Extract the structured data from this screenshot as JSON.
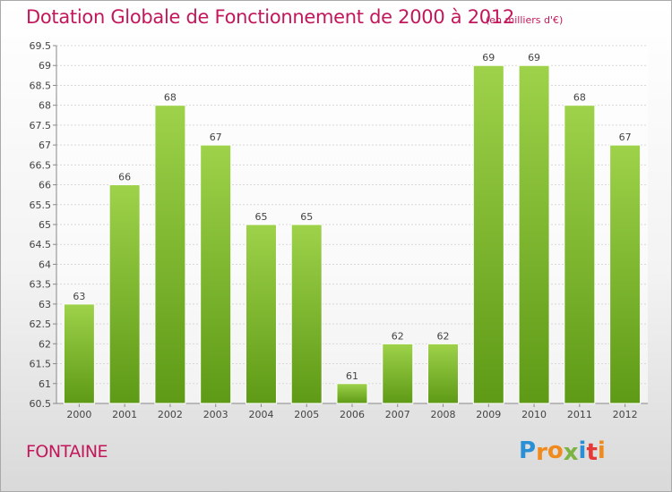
{
  "title": "Dotation Globale de Fonctionnement de 2000 à 2012",
  "subtitle": "(en milliers d'€)",
  "commune": "FONTAINE",
  "brand": {
    "letters": [
      "P",
      "r",
      "o",
      "x",
      "i",
      "t",
      "i"
    ],
    "colors": [
      "#2b8fd6",
      "#f08a1c",
      "#f08a1c",
      "#7cb342",
      "#2b8fd6",
      "#e53935",
      "#f08a1c"
    ]
  },
  "colors": {
    "bar_top": "#9ed24a",
    "bar_bottom": "#5e9a16",
    "title": "#c2185b"
  },
  "chart_data": {
    "type": "bar",
    "title": "Dotation Globale de Fonctionnement de 2000 à 2012",
    "subtitle": "(en milliers d'€)",
    "categories": [
      "2000",
      "2001",
      "2002",
      "2003",
      "2004",
      "2005",
      "2006",
      "2007",
      "2008",
      "2009",
      "2010",
      "2011",
      "2012"
    ],
    "values": [
      63,
      66,
      68,
      67,
      65,
      65,
      61,
      62,
      62,
      69,
      69,
      68,
      67
    ],
    "ylim": [
      60.5,
      69.5
    ],
    "yticks": [
      "60.5",
      "61",
      "61.5",
      "62",
      "62.5",
      "63",
      "63.5",
      "64",
      "64.5",
      "65",
      "65.5",
      "66",
      "66.5",
      "67",
      "67.5",
      "68",
      "68.5",
      "69",
      "69.5"
    ],
    "grid": true,
    "legend": "none"
  }
}
